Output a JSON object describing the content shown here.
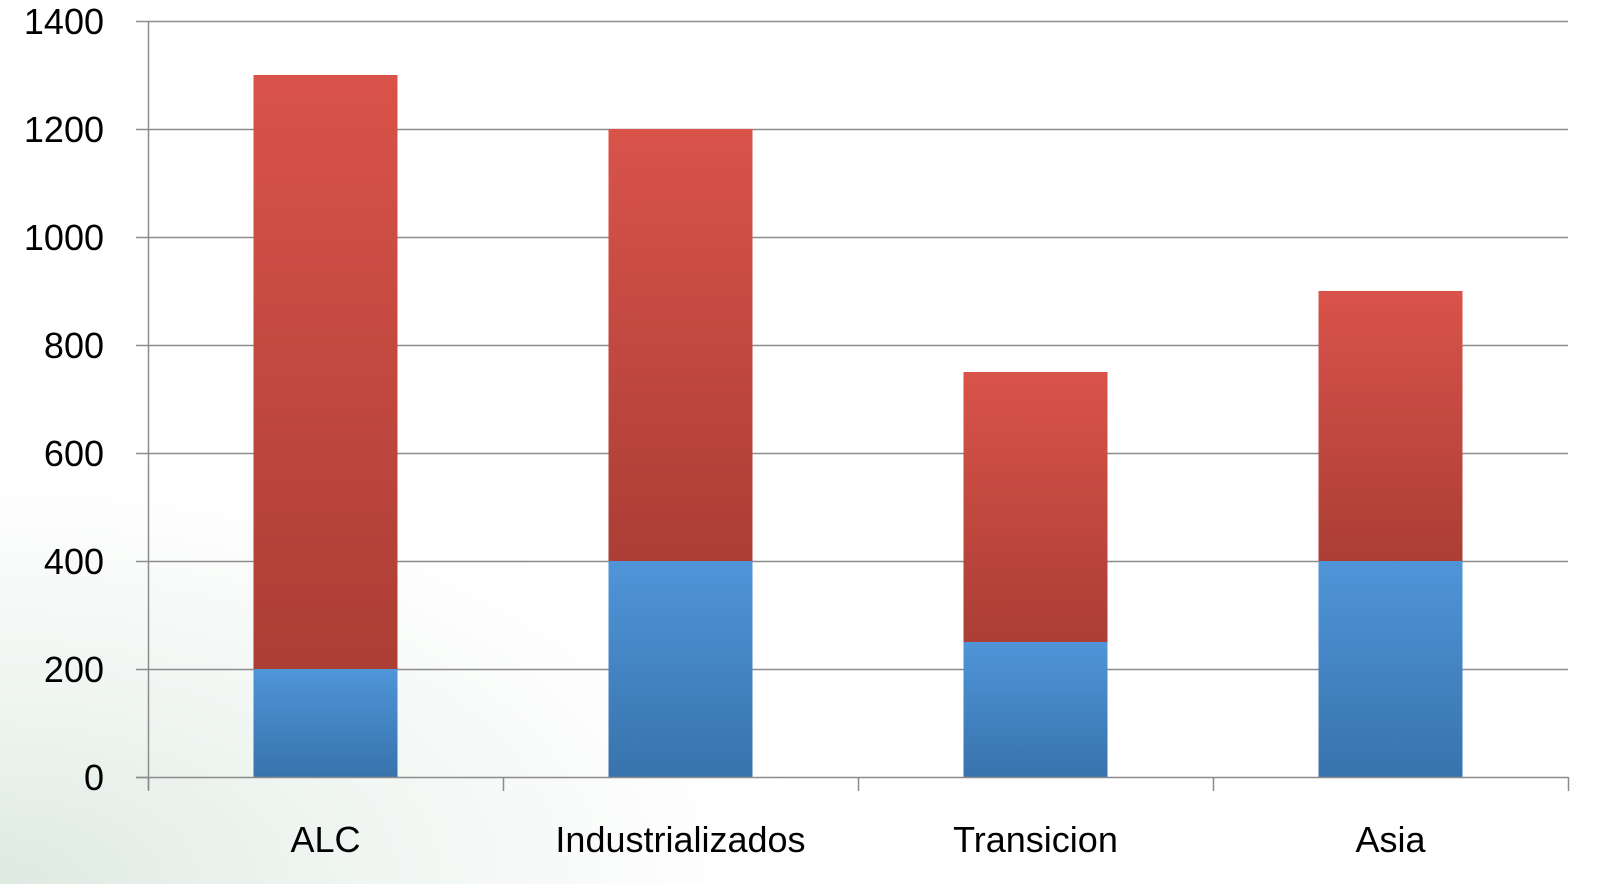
{
  "chart_data": {
    "type": "bar",
    "stacked": true,
    "categories": [
      "ALC",
      "Industrializados",
      "Transicion",
      "Asia"
    ],
    "series": [
      {
        "values": [
          200,
          400,
          250,
          400
        ],
        "color": "#4a8fd1"
      },
      {
        "values": [
          1100,
          800,
          500,
          500
        ],
        "color": "#d9534a"
      }
    ],
    "ylim": [
      0,
      1400
    ],
    "yticks": [
      "0",
      "200",
      "400",
      "600",
      "800",
      "1000",
      "1200",
      "1400"
    ],
    "ytick_values": [
      0,
      200,
      400,
      600,
      800,
      1000,
      1200,
      1400
    ],
    "grid": true,
    "legend": "none",
    "title": "",
    "xlabel": "",
    "ylabel": ""
  }
}
